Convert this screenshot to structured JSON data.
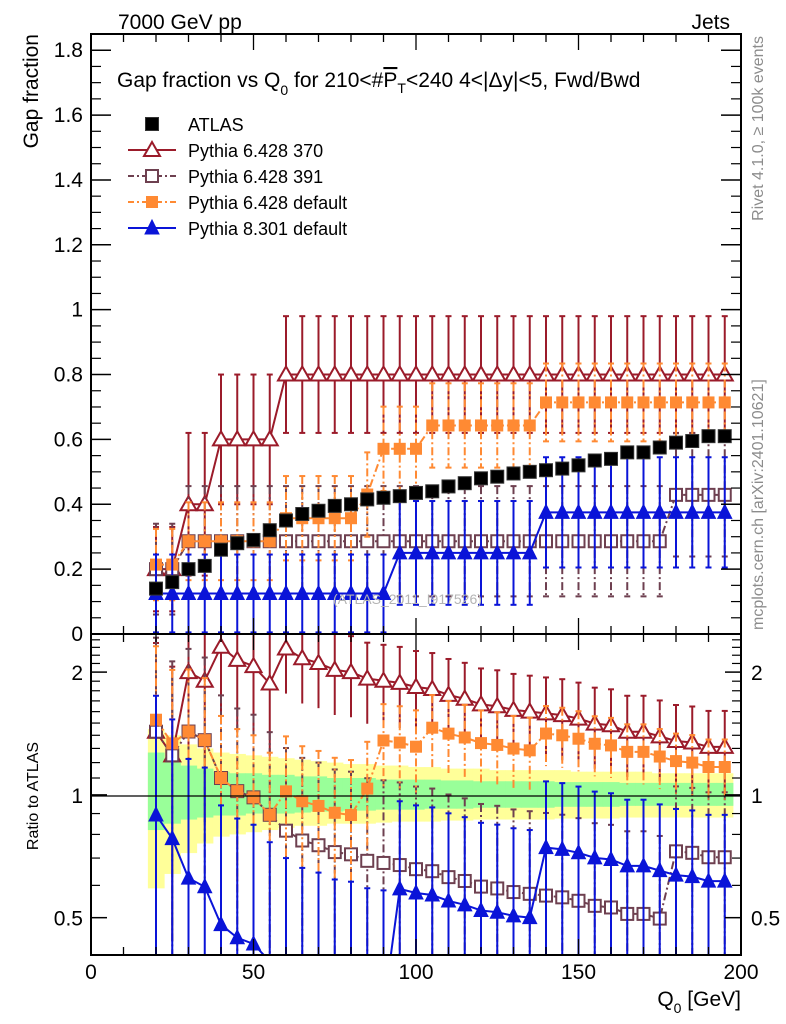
{
  "header": {
    "left": "7000 GeV pp",
    "right": "Jets"
  },
  "side_labels": {
    "rivet": "Rivet 4.1.0, ≥ 100k events",
    "mcplots": "mcplots.cern.ch [arXiv:2401.10621]"
  },
  "chart_data": [
    {
      "type": "scatter",
      "panel": "main",
      "title": "Gap fraction vs Q₀ for 210<#P̅T<240  4<|Δy|<5, Fwd/Bwd",
      "title_parts": {
        "a": "Gap fraction vs Q",
        "a_sub": "0",
        "b": " for 210<#",
        "b_over": "P",
        "b_sub": "T",
        "c": "<240  4<|Δy|<5, Fwd/Bwd"
      },
      "ylabel": "Gap fraction",
      "xlabel": "",
      "xlim": [
        0,
        200
      ],
      "ylim": [
        0,
        1.85
      ],
      "yticks": [
        0,
        0.2,
        0.4,
        0.6,
        0.8,
        1,
        1.2,
        1.4,
        1.6,
        1.8
      ],
      "ytick_labels": [
        "0",
        "0.2",
        "0.4",
        "0.6",
        "0.8",
        "1",
        "1.2",
        "1.4",
        "1.6",
        "1.8"
      ],
      "watermark": "(ATLAS_2011_I917526)",
      "legend_position": "top-left",
      "x": [
        20,
        25,
        30,
        35,
        40,
        45,
        50,
        55,
        60,
        65,
        70,
        75,
        80,
        85,
        90,
        95,
        100,
        105,
        110,
        115,
        120,
        125,
        130,
        135,
        140,
        145,
        150,
        155,
        160,
        165,
        170,
        175,
        180,
        185,
        190,
        195
      ],
      "series": [
        {
          "name": "ATLAS",
          "color": "#000000",
          "marker": "filled-square",
          "line": "none",
          "values": [
            0.14,
            0.16,
            0.2,
            0.21,
            0.26,
            0.28,
            0.29,
            0.32,
            0.35,
            0.37,
            0.38,
            0.395,
            0.4,
            0.415,
            0.42,
            0.425,
            0.435,
            0.44,
            0.455,
            0.465,
            0.48,
            0.485,
            0.495,
            0.5,
            0.505,
            0.51,
            0.52,
            0.535,
            0.54,
            0.56,
            0.56,
            0.575,
            0.59,
            0.595,
            0.61,
            0.61
          ],
          "errors": []
        },
        {
          "name": "Pythia 6.428 370",
          "color": "#9b1b2a",
          "marker": "open-triangle",
          "line": "solid",
          "values": [
            0.2,
            0.2,
            0.4,
            0.4,
            0.6,
            0.6,
            0.6,
            0.6,
            0.8,
            0.8,
            0.8,
            0.8,
            0.8,
            0.8,
            0.8,
            0.8,
            0.8,
            0.8,
            0.8,
            0.8,
            0.8,
            0.8,
            0.8,
            0.8,
            0.8,
            0.8,
            0.8,
            0.8,
            0.8,
            0.8,
            0.8,
            0.8,
            0.8,
            0.8,
            0.8,
            0.8
          ],
          "errors": [
            0.13,
            0.13,
            0.22,
            0.22,
            0.2,
            0.2,
            0.2,
            0.2,
            0.18,
            0.18,
            0.18,
            0.18,
            0.18,
            0.18,
            0.18,
            0.18,
            0.18,
            0.18,
            0.18,
            0.18,
            0.18,
            0.18,
            0.18,
            0.18,
            0.18,
            0.18,
            0.18,
            0.18,
            0.18,
            0.18,
            0.18,
            0.18,
            0.18,
            0.18,
            0.18,
            0.18
          ]
        },
        {
          "name": "Pythia 6.428 391",
          "color": "#6e4050",
          "marker": "open-square",
          "line": "dash-dot",
          "values": [
            0.2,
            0.2,
            0.286,
            0.286,
            0.286,
            0.286,
            0.286,
            0.286,
            0.286,
            0.286,
            0.286,
            0.286,
            0.286,
            0.286,
            0.286,
            0.286,
            0.286,
            0.286,
            0.286,
            0.286,
            0.286,
            0.286,
            0.286,
            0.286,
            0.286,
            0.286,
            0.286,
            0.286,
            0.286,
            0.286,
            0.286,
            0.286,
            0.429,
            0.429,
            0.429,
            0.429
          ],
          "errors": [
            0.14,
            0.14,
            0.17,
            0.17,
            0.17,
            0.17,
            0.17,
            0.17,
            0.17,
            0.17,
            0.17,
            0.17,
            0.17,
            0.17,
            0.17,
            0.17,
            0.17,
            0.17,
            0.17,
            0.17,
            0.17,
            0.17,
            0.17,
            0.17,
            0.17,
            0.17,
            0.17,
            0.17,
            0.17,
            0.17,
            0.17,
            0.17,
            0.19,
            0.19,
            0.19,
            0.19
          ]
        },
        {
          "name": "Pythia 6.428 default",
          "color": "#ff8a33",
          "marker": "filled-square",
          "line": "dash-dot",
          "values": [
            0.214,
            0.214,
            0.286,
            0.286,
            0.286,
            0.286,
            0.286,
            0.286,
            0.357,
            0.357,
            0.357,
            0.357,
            0.357,
            0.43,
            0.571,
            0.571,
            0.571,
            0.643,
            0.643,
            0.643,
            0.643,
            0.643,
            0.643,
            0.643,
            0.714,
            0.714,
            0.714,
            0.714,
            0.714,
            0.714,
            0.714,
            0.714,
            0.714,
            0.714,
            0.714,
            0.714
          ],
          "errors": [
            0.11,
            0.11,
            0.12,
            0.12,
            0.12,
            0.12,
            0.12,
            0.12,
            0.13,
            0.13,
            0.13,
            0.13,
            0.13,
            0.13,
            0.13,
            0.13,
            0.13,
            0.13,
            0.13,
            0.13,
            0.13,
            0.13,
            0.13,
            0.13,
            0.12,
            0.12,
            0.12,
            0.12,
            0.12,
            0.12,
            0.12,
            0.12,
            0.12,
            0.12,
            0.12,
            0.12
          ]
        },
        {
          "name": "Pythia 8.301 default",
          "color": "#0a14d8",
          "marker": "filled-triangle",
          "line": "solid",
          "values": [
            0.125,
            0.125,
            0.125,
            0.125,
            0.125,
            0.125,
            0.125,
            0.125,
            0.125,
            0.125,
            0.125,
            0.125,
            0.125,
            0.125,
            0.125,
            0.25,
            0.25,
            0.25,
            0.25,
            0.25,
            0.25,
            0.25,
            0.25,
            0.25,
            0.375,
            0.375,
            0.375,
            0.375,
            0.375,
            0.375,
            0.375,
            0.375,
            0.375,
            0.375,
            0.375,
            0.375
          ],
          "errors": [
            0.12,
            0.12,
            0.12,
            0.12,
            0.12,
            0.12,
            0.12,
            0.12,
            0.12,
            0.12,
            0.12,
            0.12,
            0.12,
            0.12,
            0.12,
            0.16,
            0.16,
            0.16,
            0.16,
            0.16,
            0.16,
            0.16,
            0.16,
            0.16,
            0.17,
            0.17,
            0.17,
            0.17,
            0.17,
            0.17,
            0.17,
            0.17,
            0.17,
            0.17,
            0.17,
            0.17
          ]
        }
      ]
    },
    {
      "type": "scatter",
      "panel": "ratio",
      "ylabel": "Ratio to ATLAS",
      "xlabel": "Q₀ [GeV]",
      "xlabel_parts": {
        "a": "Q",
        "sub": "0",
        "b": " [GeV]"
      },
      "xlim": [
        0,
        200
      ],
      "ylim": [
        0.405,
        2.48
      ],
      "yscale": "log",
      "xticks": [
        0,
        50,
        100,
        150,
        200
      ],
      "xtick_labels": [
        "0",
        "50",
        "100",
        "150",
        "200"
      ],
      "yticks": [
        0.5,
        1,
        2
      ],
      "ytick_labels": [
        "0.5",
        "1",
        "2"
      ],
      "reference_line": 1,
      "ratio_definition": "model / ATLAS",
      "band_green": {
        "color": "#99ff99",
        "lo": [
          0.82,
          0.85,
          0.87,
          0.88,
          0.89,
          0.89,
          0.9,
          0.9,
          0.9,
          0.905,
          0.91,
          0.91,
          0.915,
          0.915,
          0.92,
          0.92,
          0.92,
          0.925,
          0.925,
          0.925,
          0.93,
          0.93,
          0.93,
          0.93,
          0.93,
          0.935,
          0.935,
          0.935,
          0.935,
          0.94,
          0.94,
          0.94,
          0.94,
          0.94,
          0.94,
          0.94
        ],
        "hi": [
          1.27,
          1.22,
          1.18,
          1.16,
          1.14,
          1.13,
          1.13,
          1.12,
          1.12,
          1.11,
          1.11,
          1.1,
          1.1,
          1.1,
          1.09,
          1.09,
          1.09,
          1.09,
          1.085,
          1.085,
          1.08,
          1.08,
          1.08,
          1.08,
          1.08,
          1.075,
          1.075,
          1.075,
          1.075,
          1.07,
          1.07,
          1.07,
          1.07,
          1.07,
          1.07,
          1.07
        ]
      },
      "band_yellow": {
        "color": "#ffff99",
        "lo": [
          0.59,
          0.64,
          0.72,
          0.76,
          0.79,
          0.8,
          0.81,
          0.82,
          0.83,
          0.84,
          0.84,
          0.85,
          0.85,
          0.85,
          0.855,
          0.86,
          0.86,
          0.86,
          0.865,
          0.865,
          0.87,
          0.87,
          0.87,
          0.87,
          0.87,
          0.875,
          0.875,
          0.875,
          0.875,
          0.88,
          0.88,
          0.88,
          0.88,
          0.88,
          0.88,
          0.88
        ],
        "hi": [
          1.45,
          1.4,
          1.33,
          1.3,
          1.27,
          1.26,
          1.25,
          1.24,
          1.23,
          1.22,
          1.21,
          1.2,
          1.19,
          1.19,
          1.18,
          1.18,
          1.17,
          1.17,
          1.16,
          1.16,
          1.16,
          1.15,
          1.15,
          1.15,
          1.15,
          1.15,
          1.14,
          1.14,
          1.14,
          1.14,
          1.14,
          1.13,
          1.13,
          1.13,
          1.13,
          1.13
        ]
      }
    }
  ]
}
